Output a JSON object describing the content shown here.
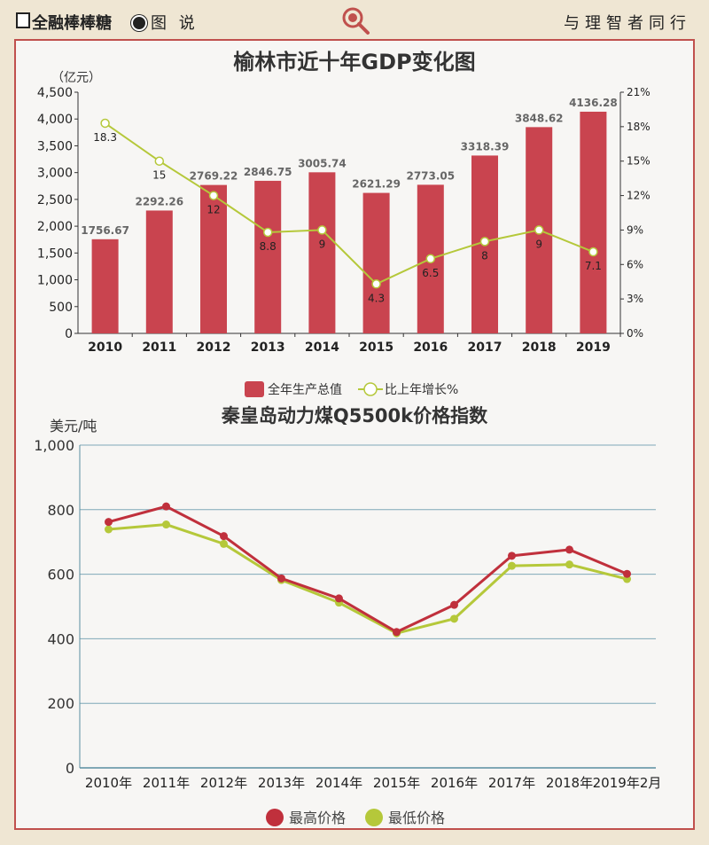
{
  "header": {
    "brand": "全融棒棒糖",
    "section": "图 说",
    "slogan": "与理智者同行"
  },
  "chart_data": [
    {
      "type": "bar",
      "title": "榆林市近十年GDP变化图",
      "ylabel": "（亿元）",
      "categories": [
        "2010",
        "2011",
        "2012",
        "2013",
        "2014",
        "2015",
        "2016",
        "2017",
        "2018",
        "2019"
      ],
      "ylim": [
        0,
        4500
      ],
      "y_ticks": [
        "0",
        "500",
        "1,000",
        "1,500",
        "2,000",
        "2,500",
        "3,000",
        "3,500",
        "4,000",
        "4,500"
      ],
      "y2lim": [
        0,
        21
      ],
      "y2_ticks": [
        "0%",
        "3%",
        "6%",
        "9%",
        "12%",
        "15%",
        "18%",
        "21%"
      ],
      "series": [
        {
          "name": "全年生产总值",
          "kind": "bar",
          "color": "#c9444f",
          "values": [
            1756.67,
            2292.26,
            2769.22,
            2846.75,
            3005.74,
            2621.29,
            2773.05,
            3318.39,
            3848.62,
            4136.28
          ]
        },
        {
          "name": "比上年增长%",
          "kind": "line",
          "axis": "right",
          "color": "#b5c83a",
          "values": [
            18.3,
            15,
            12,
            8.8,
            9,
            4.3,
            6.5,
            8,
            9,
            7.1
          ]
        }
      ],
      "legend": "bottom"
    },
    {
      "type": "line",
      "title": "秦皇岛动力煤Q5500k价格指数",
      "ylabel": "美元/吨",
      "categories": [
        "2010年",
        "2011年",
        "2012年",
        "2013年",
        "2014年",
        "2015年",
        "2016年",
        "2017年",
        "2018年",
        "2019年2月"
      ],
      "ylim": [
        0,
        1000
      ],
      "y_ticks": [
        "0",
        "200",
        "400",
        "600",
        "800",
        "1,000"
      ],
      "series": [
        {
          "name": "最高价格",
          "color": "#c0303c",
          "values": [
            762,
            810,
            718,
            587,
            525,
            421,
            505,
            657,
            676,
            601
          ]
        },
        {
          "name": "最低价格",
          "color": "#b5c83a",
          "values": [
            739,
            754,
            694,
            582,
            512,
            417,
            462,
            626,
            630,
            585
          ]
        }
      ],
      "legend": "bottom",
      "grid": true
    }
  ]
}
